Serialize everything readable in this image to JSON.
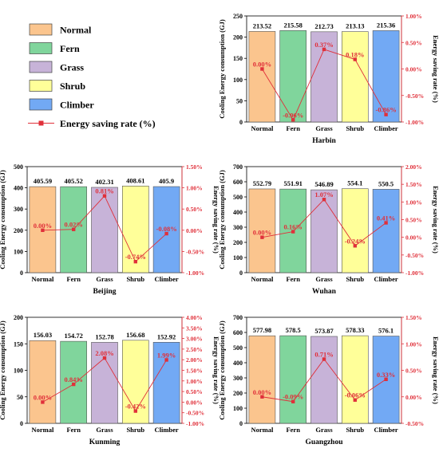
{
  "legend": {
    "items": [
      {
        "label": "Normal",
        "color": "#fbc58e"
      },
      {
        "label": "Fern",
        "color": "#80d59c"
      },
      {
        "label": "Grass",
        "color": "#c7b3d8"
      },
      {
        "label": "Shrub",
        "color": "#ffff99"
      },
      {
        "label": "Climber",
        "color": "#72a9f4"
      }
    ],
    "line_label": "Energy saving rate (%)",
    "line_color": "#e0303a"
  },
  "chart_data": [
    {
      "type": "bar",
      "title": "Harbin",
      "categories": [
        "Normal",
        "Fern",
        "Grass",
        "Shrub",
        "Climber"
      ],
      "values": [
        213.52,
        215.58,
        212.73,
        213.13,
        215.36
      ],
      "value_labels": [
        "213.52",
        "215.58",
        "212.73",
        "213.13",
        "215.36"
      ],
      "ylabel": "Cooling Energy consumption (GJ)",
      "ylim": [
        0,
        250
      ],
      "yticks": [
        "0",
        "50",
        "100",
        "150",
        "200",
        "250"
      ],
      "rate_label": "Energy saving rate (%)",
      "rates": [
        0.0,
        -0.96,
        0.37,
        0.18,
        -0.86
      ],
      "rate_labels": [
        "0.00%",
        "-0.96%",
        "0.37%",
        "0.18%",
        "-0.86%"
      ],
      "rlim": [
        -1.0,
        1.0
      ],
      "rticks": [
        "-1.00%",
        "-0.50%",
        "0.00%",
        "0.50%",
        "1.00%"
      ]
    },
    {
      "type": "bar",
      "title": "Beijing",
      "categories": [
        "Normal",
        "Fern",
        "Grass",
        "Shrub",
        "Climber"
      ],
      "values": [
        405.59,
        405.52,
        402.31,
        408.61,
        405.9
      ],
      "value_labels": [
        "405.59",
        "405.52",
        "402.31",
        "408.61",
        "405.9"
      ],
      "ylabel": "Cooling Energy consumption (GJ)",
      "ylim": [
        0,
        500
      ],
      "yticks": [
        "0",
        "100",
        "200",
        "300",
        "400",
        "500"
      ],
      "rate_label": "Energy saving rate (%)",
      "rates": [
        0.0,
        0.02,
        0.81,
        -0.74,
        -0.08
      ],
      "rate_labels": [
        "0.00%",
        "0.02%",
        "0.81%",
        "-0.74%",
        "-0.08%"
      ],
      "rlim": [
        -1.0,
        1.5
      ],
      "rticks": [
        "-1.00%",
        "-0.50%",
        "0.00%",
        "0.50%",
        "1.00%",
        "1.50%"
      ]
    },
    {
      "type": "bar",
      "title": "Wuhan",
      "categories": [
        "Normal",
        "Fern",
        "Grass",
        "Shrub",
        "Climber"
      ],
      "values": [
        552.79,
        551.91,
        546.89,
        554.1,
        550.5
      ],
      "value_labels": [
        "552.79",
        "551.91",
        "546.89",
        "554.1",
        "550.5"
      ],
      "ylabel": "Cooling Energy consumption (GJ)",
      "ylim": [
        0,
        700
      ],
      "yticks": [
        "0",
        "100",
        "200",
        "300",
        "400",
        "500",
        "600",
        "700"
      ],
      "rate_label": "Energy saving rate (%)",
      "rates": [
        0.0,
        0.16,
        1.07,
        -0.24,
        0.41
      ],
      "rate_labels": [
        "0.00%",
        "0.16%",
        "1.07%",
        "-0.24%",
        "0.41%"
      ],
      "rlim": [
        -1.0,
        2.0
      ],
      "rticks": [
        "-1.00%",
        "-0.50%",
        "0.00%",
        "0.50%",
        "1.00%",
        "1.50%",
        "2.00%"
      ]
    },
    {
      "type": "bar",
      "title": "Kunming",
      "categories": [
        "Normal",
        "Fern",
        "Grass",
        "Shrub",
        "Climber"
      ],
      "values": [
        156.03,
        154.72,
        152.78,
        156.68,
        152.92
      ],
      "value_labels": [
        "156.03",
        "154.72",
        "152.78",
        "156.68",
        "152.92"
      ],
      "ylabel": "Cooling Energy consumption (GJ)",
      "ylim": [
        0,
        200
      ],
      "yticks": [
        "0",
        "50",
        "100",
        "150",
        "200"
      ],
      "rate_label": "Energy saving rate (%)",
      "rates": [
        0.0,
        0.84,
        2.08,
        -0.42,
        1.99
      ],
      "rate_labels": [
        "0.00%",
        "0.84%",
        "2.08%",
        "-0.42%",
        "1.99%"
      ],
      "rlim": [
        -1.0,
        4.0
      ],
      "rticks": [
        "-1.00%",
        "-0.50%",
        "0.00%",
        "0.50%",
        "1.00%",
        "1.50%",
        "2.00%",
        "2.50%",
        "3.00%",
        "3.50%",
        "4.00%"
      ]
    },
    {
      "type": "bar",
      "title": "Guangzhou",
      "categories": [
        "Normal",
        "Fern",
        "Grass",
        "Shrub",
        "Climber"
      ],
      "values": [
        577.98,
        578.5,
        573.87,
        578.33,
        576.1
      ],
      "value_labels": [
        "577.98",
        "578.5",
        "573.87",
        "578.33",
        "576.1"
      ],
      "ylabel": "Cooling Energy consumption (GJ)",
      "ylim": [
        0,
        700
      ],
      "yticks": [
        "0",
        "100",
        "200",
        "300",
        "400",
        "500",
        "600",
        "700"
      ],
      "rate_label": "Energy saving rate (%)",
      "rates": [
        0.0,
        -0.09,
        0.71,
        -0.06,
        0.33
      ],
      "rate_labels": [
        "0.00%",
        "-0.09%",
        "0.71%",
        "-0.06%",
        "0.33%"
      ],
      "rlim": [
        -0.5,
        1.5
      ],
      "rticks": [
        "-0.50%",
        "0.00%",
        "0.50%",
        "1.00%",
        "1.50%"
      ]
    }
  ]
}
